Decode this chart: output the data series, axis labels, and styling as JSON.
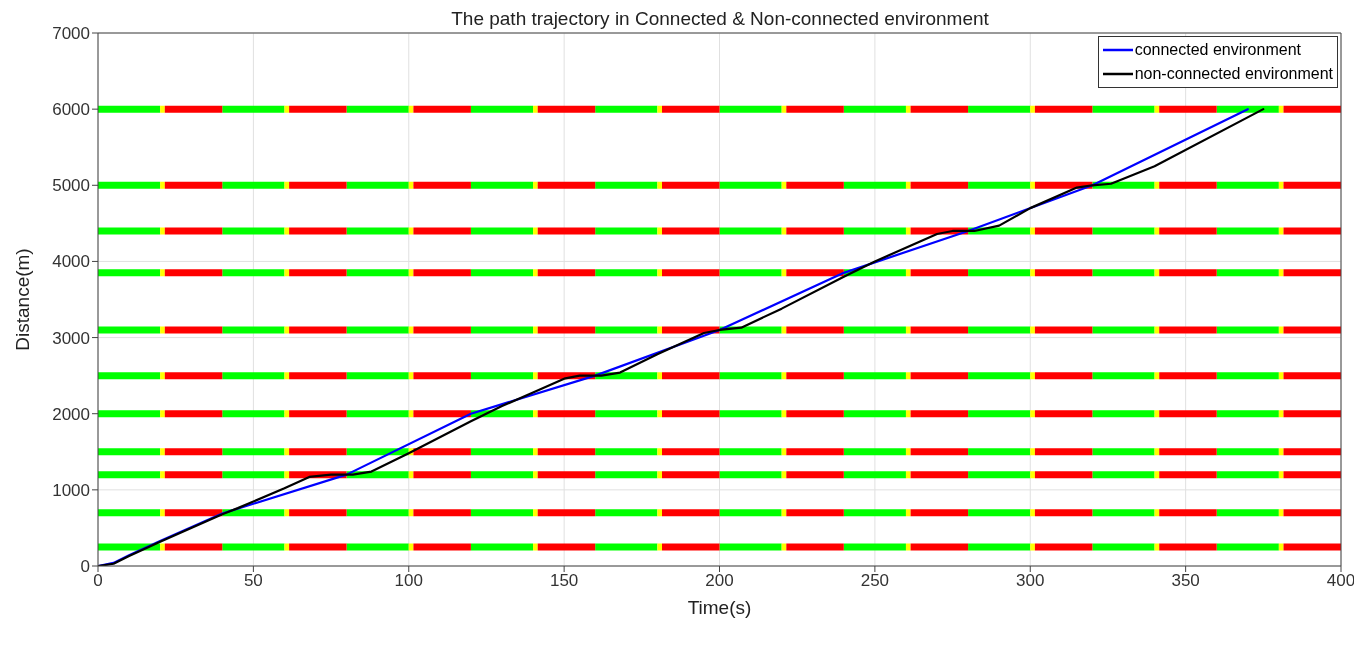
{
  "chart_data": {
    "type": "line",
    "title": "The path trajectory in Connected & Non-connected environment",
    "xlabel": "Time(s)",
    "ylabel": "Distance(m)",
    "xlim": [
      0,
      400
    ],
    "xticks": [
      0,
      50,
      100,
      150,
      200,
      250,
      300,
      350,
      400
    ],
    "ylim": [
      0,
      7000
    ],
    "yticks": [
      0,
      1000,
      2000,
      3000,
      4000,
      5000,
      6000,
      7000
    ],
    "grid": true,
    "legend": "top right",
    "series": [
      {
        "color": "#00ff00",
        "x": [
          0,
          20,
          40,
          60,
          80,
          100,
          120,
          140,
          160,
          180,
          200,
          220,
          240,
          260,
          280,
          300,
          320,
          340,
          360,
          380
        ],
        "values": [
          250,
          250,
          250,
          250,
          250,
          250,
          250,
          250,
          250,
          250,
          250,
          250,
          250,
          250,
          250,
          250,
          250,
          250,
          250,
          250
        ]
      },
      {
        "color": "#ffff00",
        "x": [
          20,
          21.5,
          60,
          61.5,
          100,
          101.5,
          140,
          141.5,
          180,
          181.5,
          220,
          221.5,
          260,
          261.5,
          300,
          301.5,
          340,
          341.5,
          380,
          381.5
        ],
        "values": [
          250,
          250,
          250,
          250,
          250,
          250,
          250,
          250,
          250,
          250,
          250,
          250,
          250,
          250,
          250,
          250,
          250,
          250,
          250,
          250
        ]
      },
      {
        "color": "#ff0000",
        "x": [
          21.5,
          40,
          61.5,
          80,
          101.5,
          120,
          141.5,
          160,
          181.5,
          200,
          221.5,
          240,
          261.5,
          280,
          301.5,
          320,
          341.5,
          360,
          381.5,
          400
        ],
        "values": [
          250,
          250,
          250,
          250,
          250,
          250,
          250,
          250,
          250,
          250,
          250,
          250,
          250,
          250,
          250,
          250,
          250,
          250,
          250,
          250
        ]
      },
      {
        "color": "#00ff00",
        "x": [
          0,
          20,
          40,
          60,
          80,
          100,
          120,
          140,
          160,
          180,
          200,
          220,
          240,
          260,
          280,
          300,
          320,
          340,
          360,
          380
        ],
        "values": [
          700,
          700,
          700,
          700,
          700,
          700,
          700,
          700,
          700,
          700,
          700,
          700,
          700,
          700,
          700,
          700,
          700,
          700,
          700,
          700
        ]
      },
      {
        "color": "#ffff00",
        "x": [
          20,
          21.5,
          60,
          61.5,
          100,
          101.5,
          140,
          141.5,
          180,
          181.5,
          220,
          221.5,
          260,
          261.5,
          300,
          301.5,
          340,
          341.5,
          380,
          381.5
        ],
        "values": [
          700,
          700,
          700,
          700,
          700,
          700,
          700,
          700,
          700,
          700,
          700,
          700,
          700,
          700,
          700,
          700,
          700,
          700,
          700,
          700
        ]
      },
      {
        "color": "#ff0000",
        "x": [
          21.5,
          40,
          61.5,
          80,
          101.5,
          120,
          141.5,
          160,
          181.5,
          200,
          221.5,
          240,
          261.5,
          280,
          301.5,
          320,
          341.5,
          360,
          381.5,
          400
        ],
        "values": [
          700,
          700,
          700,
          700,
          700,
          700,
          700,
          700,
          700,
          700,
          700,
          700,
          700,
          700,
          700,
          700,
          700,
          700,
          700,
          700
        ]
      },
      {
        "color": "#00ff00",
        "x": [
          0,
          20,
          40,
          60,
          80,
          100,
          120,
          140,
          160,
          180,
          200,
          220,
          240,
          260,
          280,
          300,
          320,
          340,
          360,
          380
        ],
        "values": [
          1200,
          1200,
          1200,
          1200,
          1200,
          1200,
          1200,
          1200,
          1200,
          1200,
          1200,
          1200,
          1200,
          1200,
          1200,
          1200,
          1200,
          1200,
          1200,
          1200
        ]
      },
      {
        "color": "#ffff00",
        "x": [
          20,
          21.5,
          60,
          61.5,
          100,
          101.5,
          140,
          141.5,
          180,
          181.5,
          220,
          221.5,
          260,
          261.5,
          300,
          301.5,
          340,
          341.5,
          380,
          381.5
        ],
        "values": [
          1200,
          1200,
          1200,
          1200,
          1200,
          1200,
          1200,
          1200,
          1200,
          1200,
          1200,
          1200,
          1200,
          1200,
          1200,
          1200,
          1200,
          1200,
          1200,
          1200
        ]
      },
      {
        "color": "#ff0000",
        "x": [
          21.5,
          40,
          61.5,
          80,
          101.5,
          120,
          141.5,
          160,
          181.5,
          200,
          221.5,
          240,
          261.5,
          280,
          301.5,
          320,
          341.5,
          360,
          381.5,
          400
        ],
        "values": [
          1200,
          1200,
          1200,
          1200,
          1200,
          1200,
          1200,
          1200,
          1200,
          1200,
          1200,
          1200,
          1200,
          1200,
          1200,
          1200,
          1200,
          1200,
          1200,
          1200
        ]
      },
      {
        "color": "#00ff00",
        "x": [
          0,
          20,
          40,
          60,
          80,
          100,
          120,
          140,
          160,
          180,
          200,
          220,
          240,
          260,
          280,
          300,
          320,
          340,
          360,
          380
        ],
        "values": [
          1500,
          1500,
          1500,
          1500,
          1500,
          1500,
          1500,
          1500,
          1500,
          1500,
          1500,
          1500,
          1500,
          1500,
          1500,
          1500,
          1500,
          1500,
          1500,
          1500
        ]
      },
      {
        "color": "#ffff00",
        "x": [
          20,
          21.5,
          60,
          61.5,
          100,
          101.5,
          140,
          141.5,
          180,
          181.5,
          220,
          221.5,
          260,
          261.5,
          300,
          301.5,
          340,
          341.5,
          380,
          381.5
        ],
        "values": [
          1500,
          1500,
          1500,
          1500,
          1500,
          1500,
          1500,
          1500,
          1500,
          1500,
          1500,
          1500,
          1500,
          1500,
          1500,
          1500,
          1500,
          1500,
          1500,
          1500
        ]
      },
      {
        "color": "#ff0000",
        "x": [
          21.5,
          40,
          61.5,
          80,
          101.5,
          120,
          141.5,
          160,
          181.5,
          200,
          221.5,
          240,
          261.5,
          280,
          301.5,
          320,
          341.5,
          360,
          381.5,
          400
        ],
        "values": [
          1500,
          1500,
          1500,
          1500,
          1500,
          1500,
          1500,
          1500,
          1500,
          1500,
          1500,
          1500,
          1500,
          1500,
          1500,
          1500,
          1500,
          1500,
          1500,
          1500
        ]
      },
      {
        "color": "#00ff00",
        "x": [
          0,
          20,
          40,
          60,
          80,
          100,
          120,
          140,
          160,
          180,
          200,
          220,
          240,
          260,
          280,
          300,
          320,
          340,
          360,
          380
        ],
        "values": [
          2000,
          2000,
          2000,
          2000,
          2000,
          2000,
          2000,
          2000,
          2000,
          2000,
          2000,
          2000,
          2000,
          2000,
          2000,
          2000,
          2000,
          2000,
          2000,
          2000
        ]
      },
      {
        "color": "#ffff00",
        "x": [
          20,
          21.5,
          60,
          61.5,
          100,
          101.5,
          140,
          141.5,
          180,
          181.5,
          220,
          221.5,
          260,
          261.5,
          300,
          301.5,
          340,
          341.5,
          380,
          381.5
        ],
        "values": [
          2000,
          2000,
          2000,
          2000,
          2000,
          2000,
          2000,
          2000,
          2000,
          2000,
          2000,
          2000,
          2000,
          2000,
          2000,
          2000,
          2000,
          2000,
          2000,
          2000
        ]
      },
      {
        "color": "#ff0000",
        "x": [
          21.5,
          40,
          61.5,
          80,
          101.5,
          120,
          141.5,
          160,
          181.5,
          200,
          221.5,
          240,
          261.5,
          280,
          301.5,
          320,
          341.5,
          360,
          381.5,
          400
        ],
        "values": [
          2000,
          2000,
          2000,
          2000,
          2000,
          2000,
          2000,
          2000,
          2000,
          2000,
          2000,
          2000,
          2000,
          2000,
          2000,
          2000,
          2000,
          2000,
          2000,
          2000
        ]
      },
      {
        "color": "#00ff00",
        "x": [
          0,
          20,
          40,
          60,
          80,
          100,
          120,
          140,
          160,
          180,
          200,
          220,
          240,
          260,
          280,
          300,
          320,
          340,
          360,
          380
        ],
        "values": [
          2500,
          2500,
          2500,
          2500,
          2500,
          2500,
          2500,
          2500,
          2500,
          2500,
          2500,
          2500,
          2500,
          2500,
          2500,
          2500,
          2500,
          2500,
          2500,
          2500
        ]
      },
      {
        "color": "#ffff00",
        "x": [
          20,
          21.5,
          60,
          61.5,
          100,
          101.5,
          140,
          141.5,
          180,
          181.5,
          220,
          221.5,
          260,
          261.5,
          300,
          301.5,
          340,
          341.5,
          380,
          381.5
        ],
        "values": [
          2500,
          2500,
          2500,
          2500,
          2500,
          2500,
          2500,
          2500,
          2500,
          2500,
          2500,
          2500,
          2500,
          2500,
          2500,
          2500,
          2500,
          2500,
          2500,
          2500
        ]
      },
      {
        "color": "#ff0000",
        "x": [
          21.5,
          40,
          61.5,
          80,
          101.5,
          120,
          141.5,
          160,
          181.5,
          200,
          221.5,
          240,
          261.5,
          280,
          301.5,
          320,
          341.5,
          360,
          381.5,
          400
        ],
        "values": [
          2500,
          2500,
          2500,
          2500,
          2500,
          2500,
          2500,
          2500,
          2500,
          2500,
          2500,
          2500,
          2500,
          2500,
          2500,
          2500,
          2500,
          2500,
          2500,
          2500
        ]
      },
      {
        "color": "#00ff00",
        "x": [
          0,
          20,
          40,
          60,
          80,
          100,
          120,
          140,
          160,
          180,
          200,
          220,
          240,
          260,
          280,
          300,
          320,
          340,
          360,
          380
        ],
        "values": [
          3100,
          3100,
          3100,
          3100,
          3100,
          3100,
          3100,
          3100,
          3100,
          3100,
          3100,
          3100,
          3100,
          3100,
          3100,
          3100,
          3100,
          3100,
          3100,
          3100
        ]
      },
      {
        "color": "#ffff00",
        "x": [
          20,
          21.5,
          60,
          61.5,
          100,
          101.5,
          140,
          141.5,
          180,
          181.5,
          220,
          221.5,
          260,
          261.5,
          300,
          301.5,
          340,
          341.5,
          380,
          381.5
        ],
        "values": [
          3100,
          3100,
          3100,
          3100,
          3100,
          3100,
          3100,
          3100,
          3100,
          3100,
          3100,
          3100,
          3100,
          3100,
          3100,
          3100,
          3100,
          3100,
          3100,
          3100
        ]
      },
      {
        "color": "#ff0000",
        "x": [
          21.5,
          40,
          61.5,
          80,
          101.5,
          120,
          141.5,
          160,
          181.5,
          200,
          221.5,
          240,
          261.5,
          280,
          301.5,
          320,
          341.5,
          360,
          381.5,
          400
        ],
        "values": [
          3100,
          3100,
          3100,
          3100,
          3100,
          3100,
          3100,
          3100,
          3100,
          3100,
          3100,
          3100,
          3100,
          3100,
          3100,
          3100,
          3100,
          3100,
          3100,
          3100
        ]
      },
      {
        "color": "#00ff00",
        "x": [
          0,
          20,
          40,
          60,
          80,
          100,
          120,
          140,
          160,
          180,
          200,
          220,
          240,
          260,
          280,
          300,
          320,
          340,
          360,
          380
        ],
        "values": [
          3850,
          3850,
          3850,
          3850,
          3850,
          3850,
          3850,
          3850,
          3850,
          3850,
          3850,
          3850,
          3850,
          3850,
          3850,
          3850,
          3850,
          3850,
          3850,
          3850
        ]
      },
      {
        "color": "#ffff00",
        "x": [
          20,
          21.5,
          60,
          61.5,
          100,
          101.5,
          140,
          141.5,
          180,
          181.5,
          220,
          221.5,
          260,
          261.5,
          300,
          301.5,
          340,
          341.5,
          380,
          381.5
        ],
        "values": [
          3850,
          3850,
          3850,
          3850,
          3850,
          3850,
          3850,
          3850,
          3850,
          3850,
          3850,
          3850,
          3850,
          3850,
          3850,
          3850,
          3850,
          3850,
          3850,
          3850
        ]
      },
      {
        "color": "#ff0000",
        "x": [
          21.5,
          40,
          61.5,
          80,
          101.5,
          120,
          141.5,
          160,
          181.5,
          200,
          221.5,
          240,
          261.5,
          280,
          301.5,
          320,
          341.5,
          360,
          381.5,
          400
        ],
        "values": [
          3850,
          3850,
          3850,
          3850,
          3850,
          3850,
          3850,
          3850,
          3850,
          3850,
          3850,
          3850,
          3850,
          3850,
          3850,
          3850,
          3850,
          3850,
          3850,
          3850
        ]
      },
      {
        "color": "#00ff00",
        "x": [
          0,
          20,
          40,
          60,
          80,
          100,
          120,
          140,
          160,
          180,
          200,
          220,
          240,
          260,
          280,
          300,
          320,
          340,
          360,
          380
        ],
        "values": [
          4400,
          4400,
          4400,
          4400,
          4400,
          4400,
          4400,
          4400,
          4400,
          4400,
          4400,
          4400,
          4400,
          4400,
          4400,
          4400,
          4400,
          4400,
          4400,
          4400
        ]
      },
      {
        "color": "#ffff00",
        "x": [
          20,
          21.5,
          60,
          61.5,
          100,
          101.5,
          140,
          141.5,
          180,
          181.5,
          220,
          221.5,
          260,
          261.5,
          300,
          301.5,
          340,
          341.5,
          380,
          381.5
        ],
        "values": [
          4400,
          4400,
          4400,
          4400,
          4400,
          4400,
          4400,
          4400,
          4400,
          4400,
          4400,
          4400,
          4400,
          4400,
          4400,
          4400,
          4400,
          4400,
          4400,
          4400
        ]
      },
      {
        "color": "#ff0000",
        "x": [
          21.5,
          40,
          61.5,
          80,
          101.5,
          120,
          141.5,
          160,
          181.5,
          200,
          221.5,
          240,
          261.5,
          280,
          301.5,
          320,
          341.5,
          360,
          381.5,
          400
        ],
        "values": [
          4400,
          4400,
          4400,
          4400,
          4400,
          4400,
          4400,
          4400,
          4400,
          4400,
          4400,
          4400,
          4400,
          4400,
          4400,
          4400,
          4400,
          4400,
          4400,
          4400
        ]
      },
      {
        "color": "#00ff00",
        "x": [
          0,
          20,
          40,
          60,
          80,
          100,
          120,
          140,
          160,
          180,
          200,
          220,
          240,
          260,
          280,
          300,
          320,
          340,
          360,
          380
        ],
        "values": [
          5000,
          5000,
          5000,
          5000,
          5000,
          5000,
          5000,
          5000,
          5000,
          5000,
          5000,
          5000,
          5000,
          5000,
          5000,
          5000,
          5000,
          5000,
          5000,
          5000
        ]
      },
      {
        "color": "#ffff00",
        "x": [
          20,
          21.5,
          60,
          61.5,
          100,
          101.5,
          140,
          141.5,
          180,
          181.5,
          220,
          221.5,
          260,
          261.5,
          300,
          301.5,
          340,
          341.5,
          380,
          381.5
        ],
        "values": [
          5000,
          5000,
          5000,
          5000,
          5000,
          5000,
          5000,
          5000,
          5000,
          5000,
          5000,
          5000,
          5000,
          5000,
          5000,
          5000,
          5000,
          5000,
          5000,
          5000
        ]
      },
      {
        "color": "#ff0000",
        "x": [
          21.5,
          40,
          61.5,
          80,
          101.5,
          120,
          141.5,
          160,
          181.5,
          200,
          221.5,
          240,
          261.5,
          280,
          301.5,
          320,
          341.5,
          360,
          381.5,
          400
        ],
        "values": [
          5000,
          5000,
          5000,
          5000,
          5000,
          5000,
          5000,
          5000,
          5000,
          5000,
          5000,
          5000,
          5000,
          5000,
          5000,
          5000,
          5000,
          5000,
          5000,
          5000
        ]
      },
      {
        "color": "#00ff00",
        "x": [
          0,
          20,
          40,
          60,
          80,
          100,
          120,
          140,
          160,
          180,
          200,
          220,
          240,
          260,
          280,
          300,
          320,
          340,
          360,
          380
        ],
        "values": [
          6000,
          6000,
          6000,
          6000,
          6000,
          6000,
          6000,
          6000,
          6000,
          6000,
          6000,
          6000,
          6000,
          6000,
          6000,
          6000,
          6000,
          6000,
          6000,
          6000
        ]
      },
      {
        "color": "#ffff00",
        "x": [
          20,
          21.5,
          60,
          61.5,
          100,
          101.5,
          140,
          141.5,
          180,
          181.5,
          220,
          221.5,
          260,
          261.5,
          300,
          301.5,
          340,
          341.5,
          380,
          381.5
        ],
        "values": [
          6000,
          6000,
          6000,
          6000,
          6000,
          6000,
          6000,
          6000,
          6000,
          6000,
          6000,
          6000,
          6000,
          6000,
          6000,
          6000,
          6000,
          6000,
          6000,
          6000
        ]
      },
      {
        "color": "#ff0000",
        "x": [
          21.5,
          40,
          61.5,
          80,
          101.5,
          120,
          141.5,
          160,
          181.5,
          200,
          221.5,
          240,
          261.5,
          280,
          301.5,
          320,
          341.5,
          360,
          381.5,
          400
        ],
        "values": [
          6000,
          6000,
          6000,
          6000,
          6000,
          6000,
          6000,
          6000,
          6000,
          6000,
          6000,
          6000,
          6000,
          6000,
          6000,
          6000,
          6000,
          6000,
          6000,
          6000
        ]
      },
      {
        "name": "connected environment",
        "color": "#0000ff",
        "x": [
          0,
          5,
          10,
          20,
          40,
          80,
          120,
          160,
          200,
          240,
          280,
          320,
          370
        ],
        "values": [
          0,
          40,
          140,
          330,
          690,
          1200,
          2000,
          2500,
          3100,
          3850,
          4400,
          5000,
          6000
        ]
      },
      {
        "name": "non-connected environment",
        "color": "#000000",
        "x": [
          0,
          5,
          10,
          20,
          40,
          45,
          60,
          68,
          75,
          82,
          88,
          100,
          120,
          130,
          140,
          150,
          155,
          162,
          168,
          180,
          195,
          200,
          207,
          220,
          240,
          250,
          270,
          275,
          282,
          290,
          300,
          315,
          320,
          326,
          340,
          375
        ],
        "values": [
          0,
          30,
          130,
          320,
          680,
          760,
          1020,
          1170,
          1200,
          1200,
          1240,
          1480,
          1900,
          2100,
          2280,
          2460,
          2500,
          2500,
          2540,
          2780,
          3060,
          3100,
          3130,
          3380,
          3800,
          4000,
          4360,
          4400,
          4400,
          4470,
          4700,
          4970,
          5000,
          5020,
          5250,
          6000
        ]
      }
    ]
  }
}
